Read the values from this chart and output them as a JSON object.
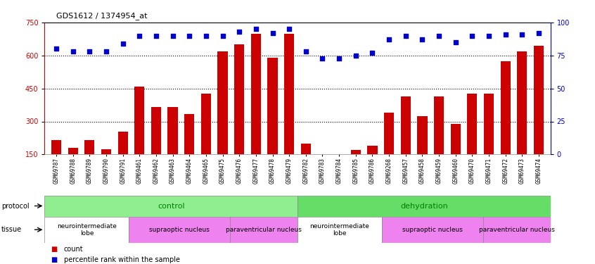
{
  "title": "GDS1612 / 1374954_at",
  "samples": [
    "GSM69787",
    "GSM69788",
    "GSM69789",
    "GSM69790",
    "GSM69791",
    "GSM69461",
    "GSM69462",
    "GSM69463",
    "GSM69464",
    "GSM69465",
    "GSM69475",
    "GSM69476",
    "GSM69477",
    "GSM69478",
    "GSM69479",
    "GSM69782",
    "GSM69783",
    "GSM69784",
    "GSM69785",
    "GSM69786",
    "GSM69268",
    "GSM69457",
    "GSM69458",
    "GSM69459",
    "GSM69460",
    "GSM69470",
    "GSM69471",
    "GSM69472",
    "GSM69473",
    "GSM69474"
  ],
  "counts": [
    215,
    180,
    215,
    175,
    255,
    460,
    365,
    365,
    335,
    425,
    620,
    650,
    700,
    590,
    700,
    200,
    140,
    138,
    170,
    190,
    340,
    415,
    325,
    415,
    290,
    425,
    425,
    575,
    620,
    645
  ],
  "percentiles": [
    80,
    78,
    78,
    78,
    84,
    90,
    90,
    90,
    90,
    90,
    90,
    93,
    95,
    92,
    95,
    78,
    73,
    73,
    75,
    77,
    87,
    90,
    87,
    90,
    85,
    90,
    90,
    91,
    91,
    92
  ],
  "protocol_groups": [
    {
      "label": "control",
      "start": 0,
      "end": 14,
      "color": "#90ee90"
    },
    {
      "label": "dehydration",
      "start": 15,
      "end": 29,
      "color": "#66dd66"
    }
  ],
  "tissue_groups": [
    {
      "label": "neurointermediate\nlobe",
      "start": 0,
      "end": 4,
      "color": "#ffffff"
    },
    {
      "label": "supraoptic nucleus",
      "start": 5,
      "end": 10,
      "color": "#ee82ee"
    },
    {
      "label": "paraventricular nucleus",
      "start": 11,
      "end": 14,
      "color": "#ee82ee"
    },
    {
      "label": "neurointermediate\nlobe",
      "start": 15,
      "end": 19,
      "color": "#ffffff"
    },
    {
      "label": "supraoptic nucleus",
      "start": 20,
      "end": 25,
      "color": "#ee82ee"
    },
    {
      "label": "paraventricular nucleus",
      "start": 26,
      "end": 29,
      "color": "#ee82ee"
    }
  ],
  "ylim_left": [
    150,
    750
  ],
  "ylim_right": [
    0,
    100
  ],
  "bar_color": "#cc0000",
  "dot_color": "#0000cc",
  "yticks_left": [
    150,
    300,
    450,
    600,
    750
  ],
  "yticks_right": [
    0,
    25,
    50,
    75,
    100
  ],
  "grid_yticks": [
    300,
    450,
    600
  ],
  "background_color": "#ffffff"
}
